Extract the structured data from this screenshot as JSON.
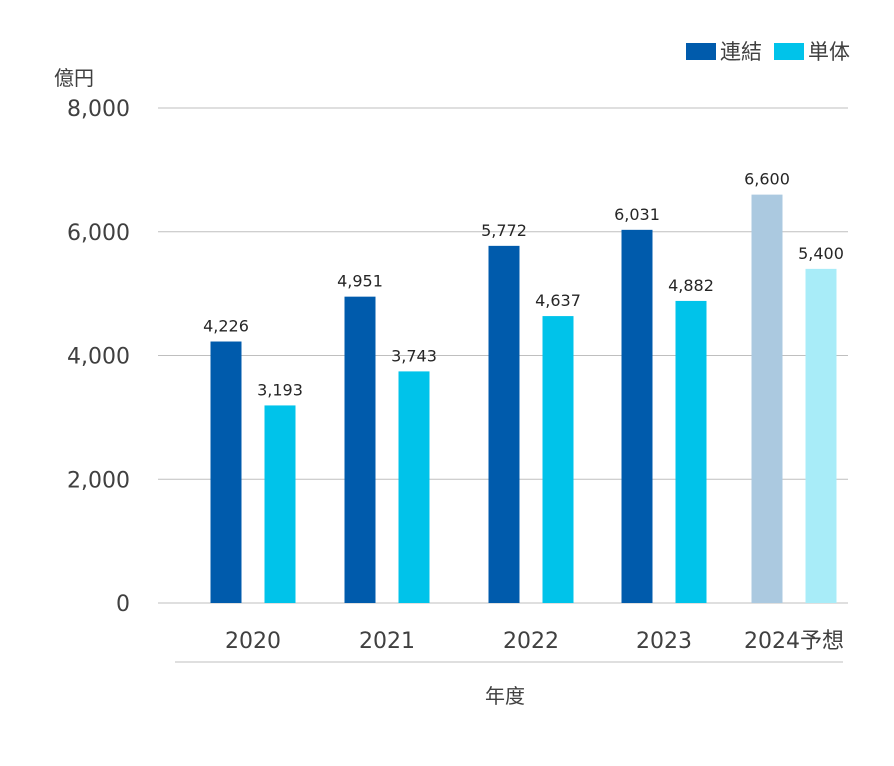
{
  "chart_data": {
    "type": "bar",
    "title": "",
    "xlabel": "年度",
    "ylabel": "億円",
    "ylim": [
      0,
      8000
    ],
    "yticks": [
      0,
      2000,
      4000,
      6000,
      8000
    ],
    "ytick_labels": [
      "0",
      "2,000",
      "4,000",
      "6,000",
      "8,000"
    ],
    "categories": [
      "2020",
      "2021",
      "2022",
      "2023",
      "2024予想"
    ],
    "grid": true,
    "legend_position": "top-right",
    "series": [
      {
        "name": "連結",
        "color": "#005BAC",
        "forecast_color": "#ABC9E0",
        "values": [
          4226,
          4951,
          5772,
          6031,
          6600
        ],
        "labels": [
          "4,226",
          "4,951",
          "5,772",
          "6,031",
          "6,600"
        ]
      },
      {
        "name": "単体",
        "color": "#00C3EA",
        "forecast_color": "#A8ECF8",
        "values": [
          3193,
          3743,
          4637,
          4882,
          5400
        ],
        "labels": [
          "3,193",
          "3,743",
          "4,637",
          "4,882",
          "5,400"
        ]
      }
    ],
    "forecast_categories": [
      "2024予想"
    ]
  }
}
